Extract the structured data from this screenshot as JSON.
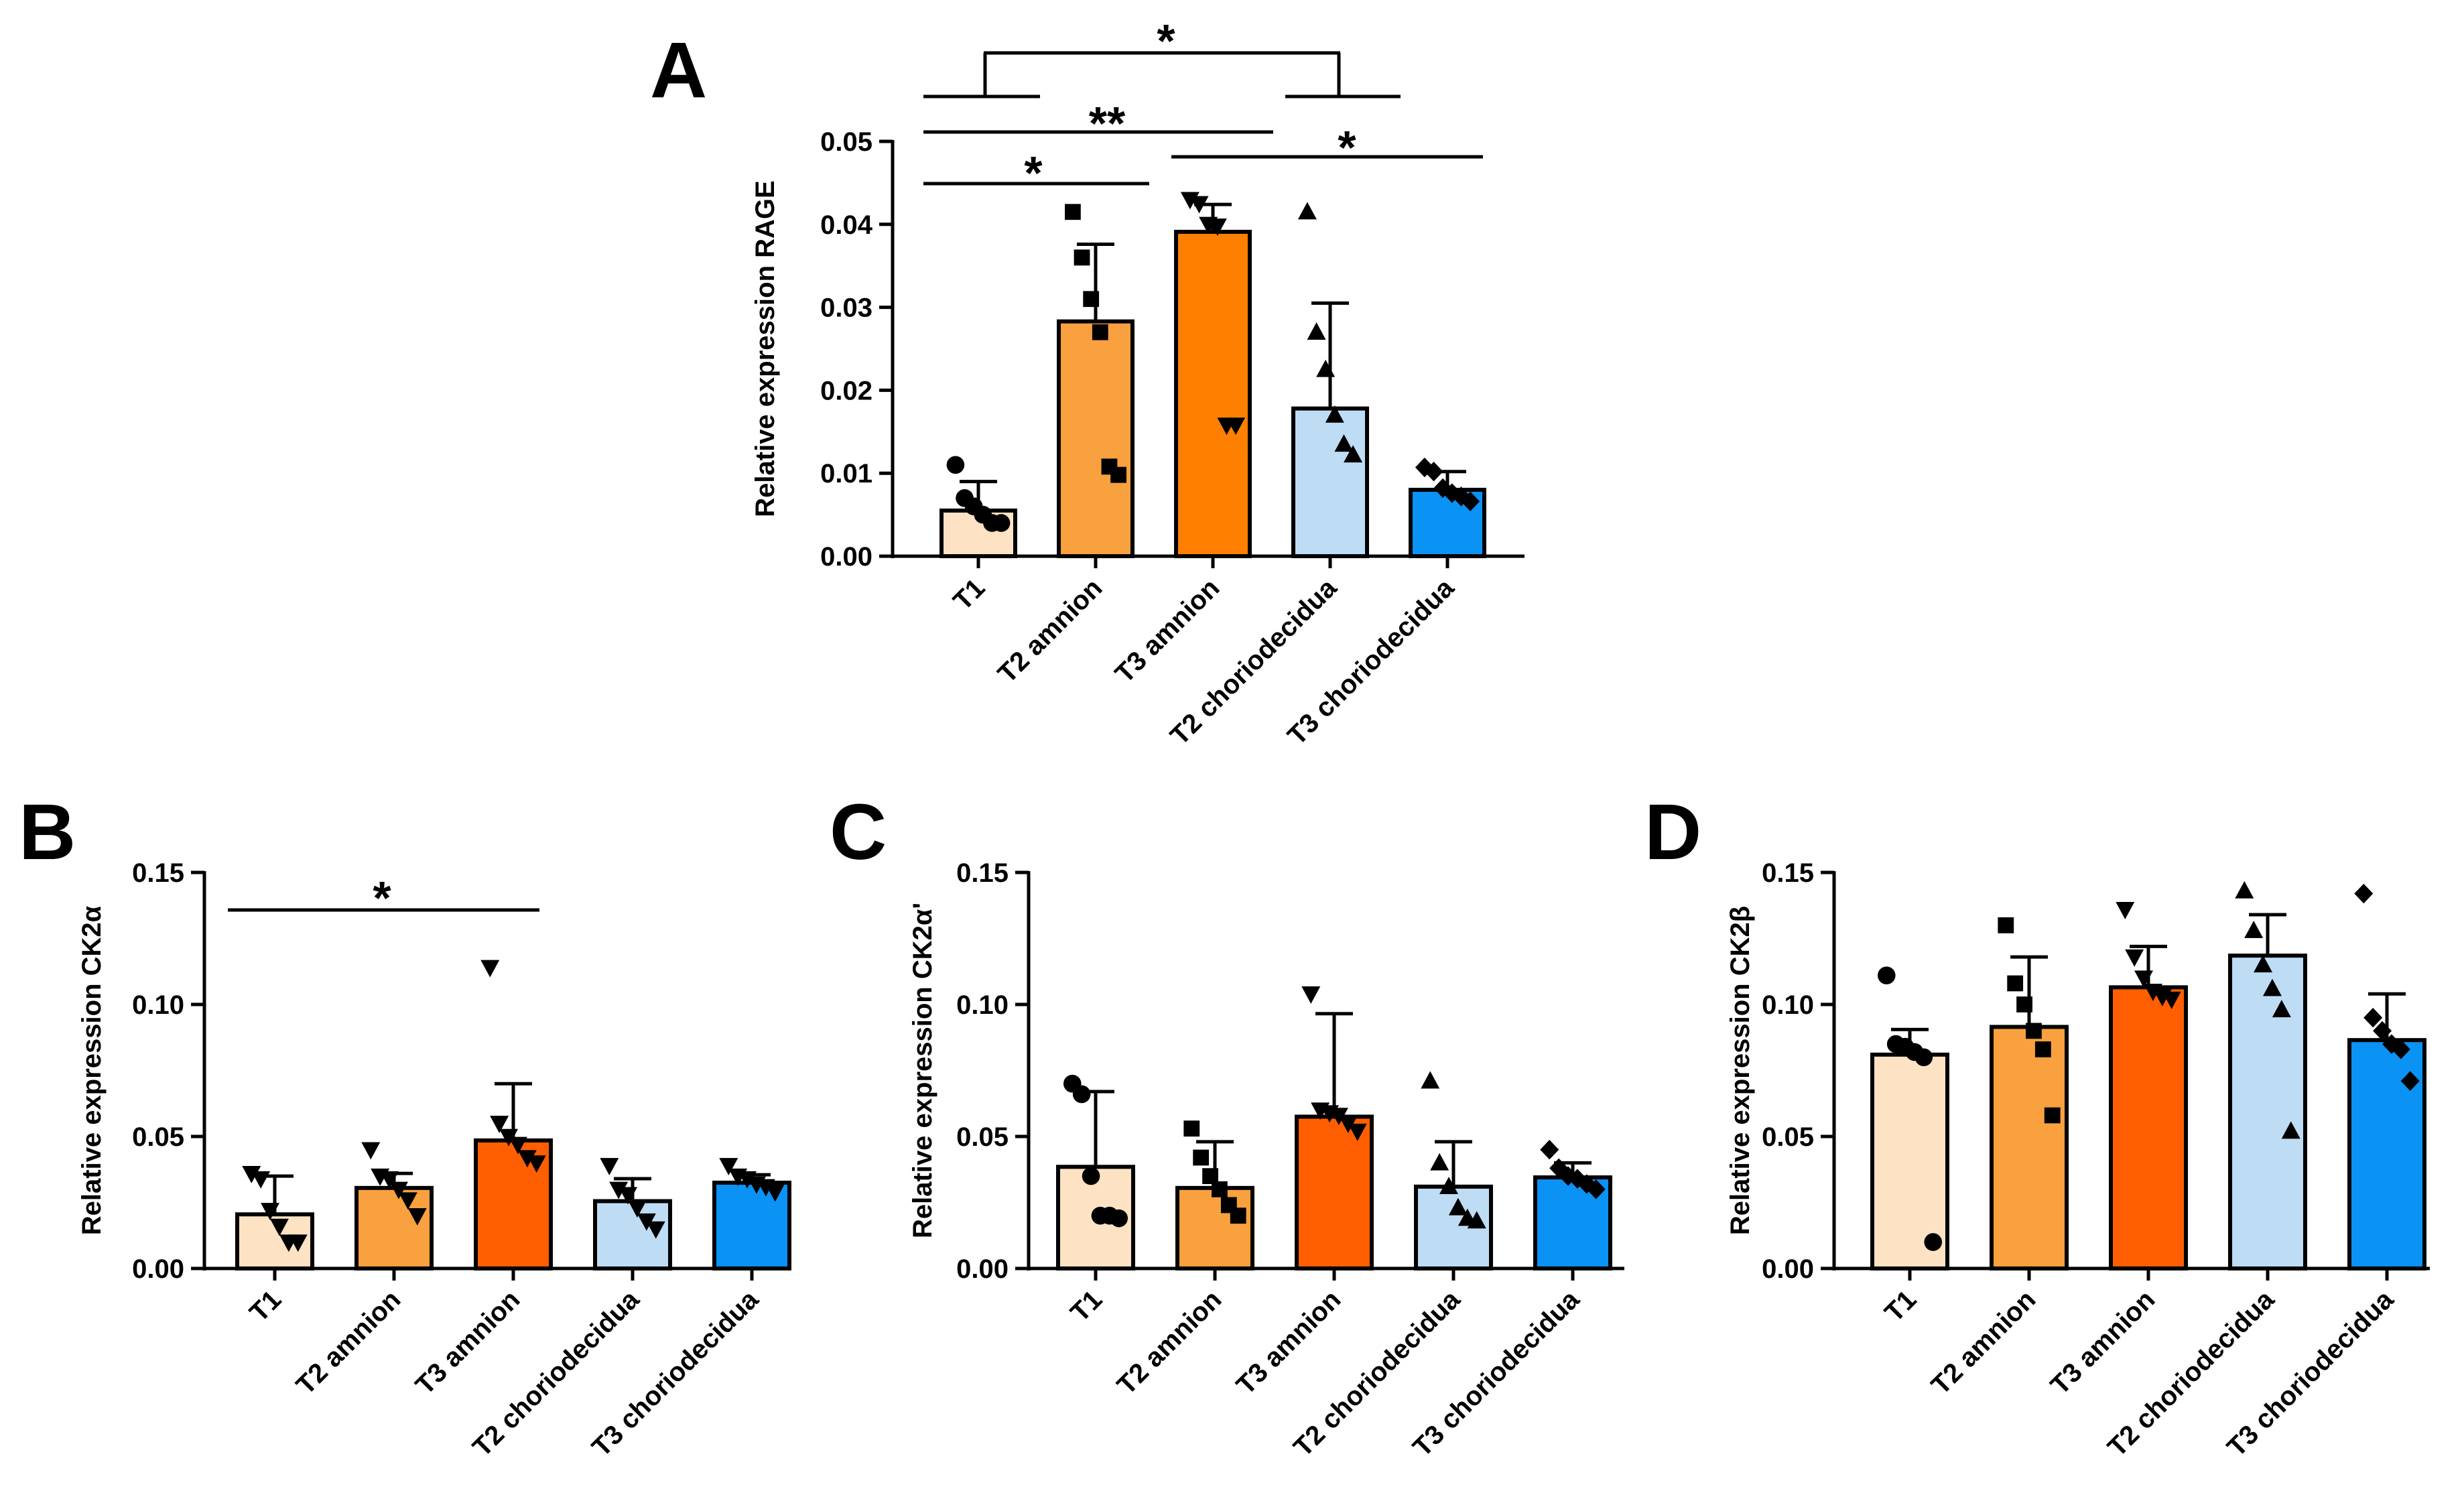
{
  "chart_data": [
    {
      "panel": "A",
      "type": "bar",
      "ylabel": "Relative expression RAGE",
      "ylim": [
        0,
        0.05
      ],
      "yticks": [
        "0.00",
        "0.01",
        "0.02",
        "0.03",
        "0.04",
        "0.05"
      ],
      "categories": [
        "T1",
        "T2 amnion",
        "T3 amnion",
        "T2 choriodecidua",
        "T3 choriodecidua"
      ],
      "colors": [
        "#fde2c4",
        "#f9a03f",
        "#ff7f00",
        "#bfdcf5",
        "#0a92f5"
      ],
      "markers": [
        "circle",
        "square",
        "triangle-down",
        "triangle-up",
        "diamond"
      ],
      "values": [
        0.0055,
        0.0283,
        0.0391,
        0.0178,
        0.008
      ],
      "errors": [
        0.0035,
        0.0093,
        0.0033,
        0.0127,
        0.0022
      ],
      "points": [
        [
          0.011,
          0.007,
          0.006,
          0.005,
          0.004,
          0.004
        ],
        [
          0.0415,
          0.036,
          0.031,
          0.027,
          0.0108,
          0.0098
        ],
        [
          0.043,
          0.0425,
          0.04,
          0.0398,
          0.0158,
          0.0158
        ],
        [
          0.0415,
          0.027,
          0.0225,
          0.017,
          0.0135,
          0.0122
        ],
        [
          0.0107,
          0.0102,
          0.0082,
          0.0076,
          0.0072,
          0.0066
        ]
      ],
      "significance": [
        {
          "from": 0,
          "to": 1,
          "label": "*"
        },
        {
          "from": 0,
          "to": 2,
          "label": "**"
        },
        {
          "from": 2,
          "to": 4,
          "label": "*"
        },
        {
          "from": "T1+T2 amnion",
          "to": "T2+T3 choriodecidua",
          "label": "*"
        }
      ]
    },
    {
      "panel": "B",
      "type": "bar",
      "ylabel": "Relative expression CK2α",
      "ylim": [
        0,
        0.15
      ],
      "yticks": [
        "0.00",
        "0.05",
        "0.10",
        "0.15"
      ],
      "categories": [
        "T1",
        "T2 amnion",
        "T3 amnion",
        "T2 choriodecidua",
        "T3 choriodecidua"
      ],
      "colors": [
        "#fde2c4",
        "#f9a03f",
        "#ff5f00",
        "#bfdcf5",
        "#0a92f5"
      ],
      "markers": [
        "triangle-down",
        "triangle-down",
        "triangle-down",
        "triangle-down",
        "triangle-down"
      ],
      "values": [
        0.0205,
        0.0305,
        0.0485,
        0.0255,
        0.0325
      ],
      "errors": [
        0.0145,
        0.0055,
        0.0215,
        0.0085,
        0.003
      ],
      "points": [
        [
          0.036,
          0.034,
          0.022,
          0.016,
          0.01,
          0.01
        ],
        [
          0.045,
          0.035,
          0.034,
          0.03,
          0.026,
          0.02
        ],
        [
          0.114,
          0.055,
          0.05,
          0.047,
          0.042,
          0.04
        ],
        [
          0.039,
          0.03,
          0.028,
          0.023,
          0.018,
          0.015
        ],
        [
          0.039,
          0.035,
          0.034,
          0.032,
          0.031,
          0.029
        ]
      ],
      "significance": [
        {
          "from": 0,
          "to": 2,
          "label": "*"
        }
      ]
    },
    {
      "panel": "C",
      "type": "bar",
      "ylabel": "Relative expression CK2α'",
      "ylim": [
        0,
        0.15
      ],
      "yticks": [
        "0.00",
        "0.05",
        "0.10",
        "0.15"
      ],
      "categories": [
        "T1",
        "T2 amnion",
        "T3 amnion",
        "T2 choriodecidua",
        "T3 choriodecidua"
      ],
      "colors": [
        "#fde2c4",
        "#f9a03f",
        "#ff5f00",
        "#bfdcf5",
        "#0a92f5"
      ],
      "markers": [
        "circle",
        "square",
        "triangle-down",
        "triangle-up",
        "diamond"
      ],
      "values": [
        0.0385,
        0.0305,
        0.0575,
        0.031,
        0.0345
      ],
      "errors": [
        0.0285,
        0.0175,
        0.039,
        0.017,
        0.0055
      ],
      "points": [
        [
          0.07,
          0.066,
          0.035,
          0.02,
          0.02,
          0.019
        ],
        [
          0.053,
          0.042,
          0.035,
          0.03,
          0.024,
          0.02
        ],
        [
          0.104,
          0.06,
          0.059,
          0.058,
          0.055,
          0.052
        ],
        [
          0.071,
          0.04,
          0.031,
          0.023,
          0.019,
          0.018
        ],
        [
          0.045,
          0.038,
          0.035,
          0.034,
          0.032,
          0.03
        ]
      ],
      "significance": []
    },
    {
      "panel": "D",
      "type": "bar",
      "ylabel": "Relative expression CK2β",
      "ylim": [
        0,
        0.15
      ],
      "yticks": [
        "0.00",
        "0.05",
        "0.10",
        "0.15"
      ],
      "categories": [
        "T1",
        "T2 amnion",
        "T3 amnion",
        "T2 choriodecidua",
        "T3 choriodecidua"
      ],
      "colors": [
        "#fde2c4",
        "#f9a03f",
        "#ff5f00",
        "#bfdcf5",
        "#0a92f5"
      ],
      "markers": [
        "circle",
        "square",
        "triangle-down",
        "triangle-up",
        "diamond"
      ],
      "values": [
        0.081,
        0.0915,
        0.1065,
        0.1185,
        0.0865
      ],
      "errors": [
        0.0095,
        0.0265,
        0.0155,
        0.0155,
        0.0175
      ],
      "points": [
        [
          0.111,
          0.085,
          0.084,
          0.082,
          0.08,
          0.01
        ],
        [
          0.13,
          0.108,
          0.1,
          0.09,
          0.083,
          0.058
        ],
        [
          0.136,
          0.118,
          0.11,
          0.105,
          0.103,
          0.102
        ],
        [
          0.143,
          0.128,
          0.115,
          0.106,
          0.098,
          0.052
        ],
        [
          0.142,
          0.095,
          0.09,
          0.085,
          0.083,
          0.071
        ]
      ],
      "significance": []
    }
  ]
}
